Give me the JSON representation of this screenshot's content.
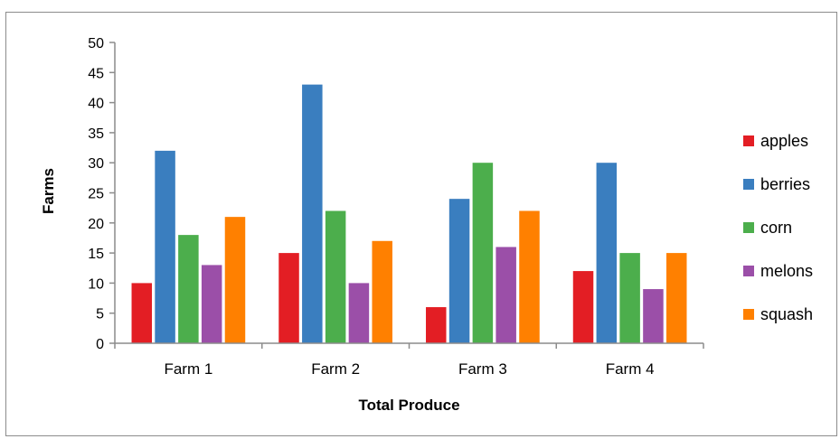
{
  "chart_data": {
    "type": "bar",
    "title": "",
    "xlabel": "Total Produce",
    "ylabel": "Farms",
    "ylim": [
      0,
      50
    ],
    "yticks": [
      0,
      5,
      10,
      15,
      20,
      25,
      30,
      35,
      40,
      45,
      50
    ],
    "grid": false,
    "legend_position": "right",
    "categories": [
      "Farm 1",
      "Farm 2",
      "Farm 3",
      "Farm 4"
    ],
    "series": [
      {
        "name": "apples",
        "color": "#e31e24",
        "values": [
          10,
          15,
          6,
          12
        ]
      },
      {
        "name": "berries",
        "color": "#3a7ebf",
        "values": [
          32,
          43,
          24,
          30
        ]
      },
      {
        "name": "corn",
        "color": "#4cae4c",
        "values": [
          18,
          22,
          30,
          15
        ]
      },
      {
        "name": "melons",
        "color": "#9b4fa8",
        "values": [
          13,
          10,
          16,
          9
        ]
      },
      {
        "name": "squash",
        "color": "#ff8000",
        "values": [
          21,
          17,
          22,
          15
        ]
      }
    ]
  }
}
